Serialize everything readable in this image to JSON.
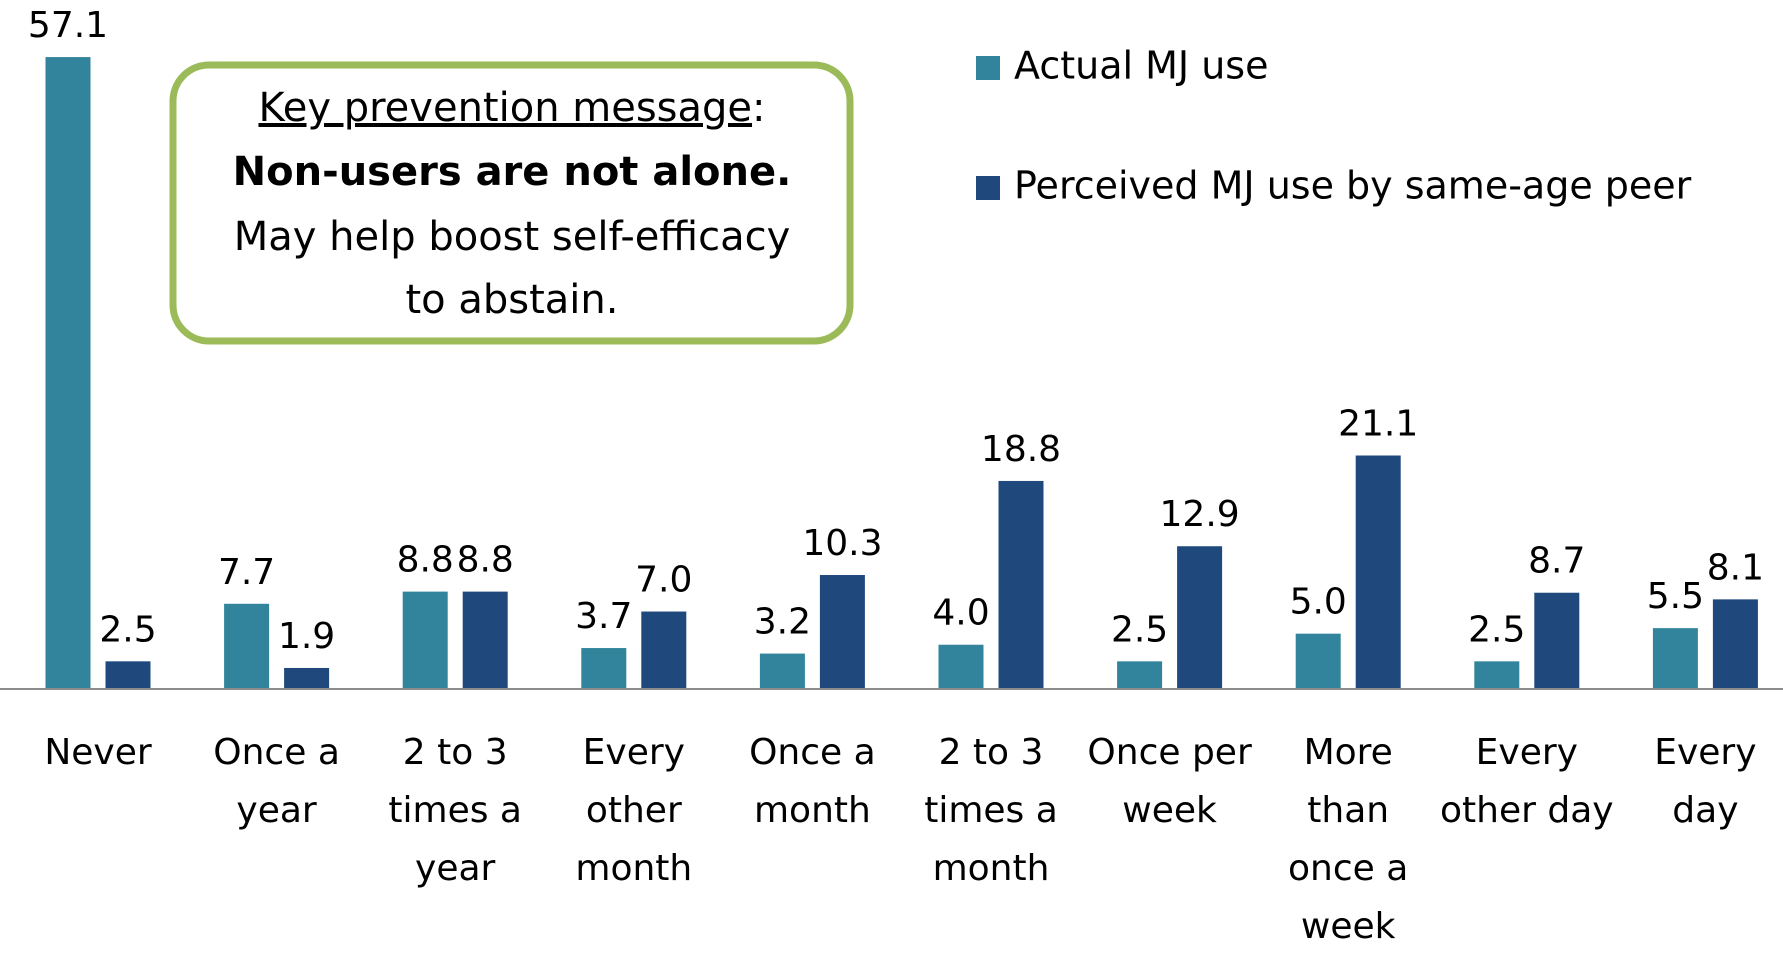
{
  "chart_data": {
    "type": "bar",
    "categories": [
      "Never",
      "Once a year",
      "2 to 3 times a year",
      "Every other month",
      "Once a month",
      "2 to 3 times a month",
      "Once per week",
      "More than once a week",
      "Every other day",
      "Every day"
    ],
    "series": [
      {
        "name": "Actual MJ use",
        "color": "#31849b",
        "values": [
          57.1,
          7.7,
          8.8,
          3.7,
          3.2,
          4.0,
          2.5,
          5.0,
          2.5,
          5.5
        ],
        "value_labels": [
          "57.1",
          "7.7",
          "8.8",
          "3.7",
          "3.2",
          "4.0",
          "2.5",
          "5.0",
          "2.5",
          "5.5"
        ]
      },
      {
        "name": "Perceived MJ use by same-age peer",
        "color": "#1f497d",
        "values": [
          2.5,
          1.9,
          8.8,
          7.0,
          10.3,
          18.8,
          12.9,
          21.1,
          8.7,
          8.1
        ],
        "value_labels": [
          "2.5",
          "1.9",
          "8.8",
          "7.0",
          "10.3",
          "18.8",
          "12.9",
          "21.1",
          "8.7",
          "8.1"
        ]
      }
    ],
    "ylim": [
      0,
      60
    ],
    "legend": "top-right",
    "annotation": {
      "heading": "Key prevention message",
      "heading_suffix": ":",
      "emphasis": "Non-users are not alone.",
      "lines": [
        "May help boost self-efficacy",
        "to abstain."
      ]
    }
  }
}
